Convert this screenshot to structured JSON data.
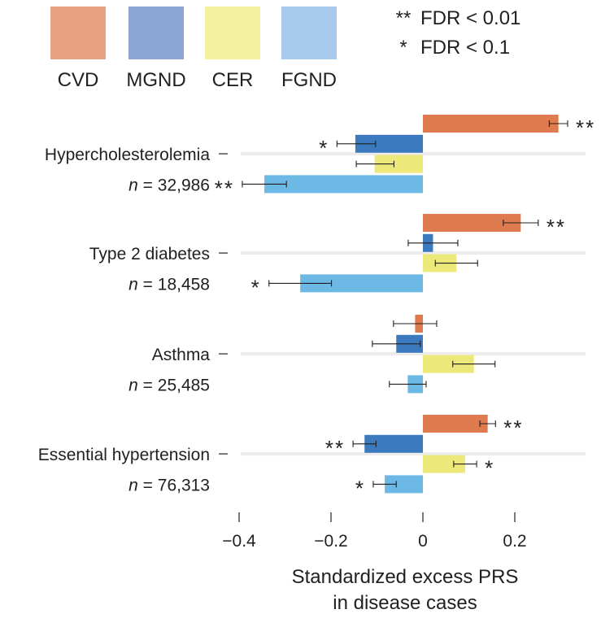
{
  "chart_data": {
    "type": "bar",
    "orientation": "horizontal",
    "xlabel": "Standardized excess PRS in disease cases",
    "xlabel_lines": [
      "Standardized excess PRS",
      "in disease cases"
    ],
    "xlim": [
      -0.42,
      0.35
    ],
    "xticks": [
      {
        "value": -0.4,
        "label": "−0.4"
      },
      {
        "value": -0.2,
        "label": "−0.2"
      },
      {
        "value": 0,
        "label": "0"
      },
      {
        "value": 0.2,
        "label": "0.2"
      }
    ],
    "n_prefix": "n",
    "legend": [
      {
        "key": "CVD",
        "label": "CVD",
        "color": "#e8a281"
      },
      {
        "key": "MGND",
        "label": "MGND",
        "color": "#8ca5d5"
      },
      {
        "key": "CER",
        "label": "CER",
        "color": "#f4f1a1"
      },
      {
        "key": "FGND",
        "label": "FGND",
        "color": "#a8caec"
      }
    ],
    "significance_legend": [
      {
        "symbol": "**",
        "text": "FDR < 0.01"
      },
      {
        "symbol": "*",
        "text": "FDR < 0.1"
      }
    ],
    "bar_colors": {
      "CVD": "#e07b4f",
      "MGND": "#3c7abf",
      "CER": "#ece87a",
      "FGND": "#6db9e6"
    },
    "groups": [
      {
        "name": "Hypercholesterolemia",
        "n": "= 32,986",
        "bars": [
          {
            "series": "CVD",
            "value": 0.295,
            "ci": [
              0.275,
              0.315
            ],
            "sig": "**"
          },
          {
            "series": "MGND",
            "value": -0.147,
            "ci": [
              -0.187,
              -0.103
            ],
            "sig": "*"
          },
          {
            "series": "CER",
            "value": -0.105,
            "ci": [
              -0.145,
              -0.063
            ],
            "sig": ""
          },
          {
            "series": "FGND",
            "value": -0.345,
            "ci": [
              -0.393,
              -0.297
            ],
            "sig": "**"
          }
        ]
      },
      {
        "name": "Type 2 diabetes",
        "n": "= 18,458",
        "bars": [
          {
            "series": "CVD",
            "value": 0.213,
            "ci": [
              0.175,
              0.251
            ],
            "sig": "**"
          },
          {
            "series": "MGND",
            "value": 0.022,
            "ci": [
              -0.032,
              0.076
            ],
            "sig": ""
          },
          {
            "series": "CER",
            "value": 0.073,
            "ci": [
              0.027,
              0.119
            ],
            "sig": ""
          },
          {
            "series": "FGND",
            "value": -0.267,
            "ci": [
              -0.335,
              -0.199
            ],
            "sig": "*"
          }
        ]
      },
      {
        "name": "Asthma",
        "n": "= 25,485",
        "bars": [
          {
            "series": "CVD",
            "value": -0.017,
            "ci": [
              -0.064,
              0.03
            ],
            "sig": ""
          },
          {
            "series": "MGND",
            "value": -0.058,
            "ci": [
              -0.11,
              -0.006
            ],
            "sig": ""
          },
          {
            "series": "CER",
            "value": 0.111,
            "ci": [
              0.065,
              0.157
            ],
            "sig": ""
          },
          {
            "series": "FGND",
            "value": -0.033,
            "ci": [
              -0.073,
              0.007
            ],
            "sig": ""
          }
        ]
      },
      {
        "name": "Essential hypertension",
        "n": "= 76,313",
        "bars": [
          {
            "series": "CVD",
            "value": 0.141,
            "ci": [
              0.124,
              0.158
            ],
            "sig": "**"
          },
          {
            "series": "MGND",
            "value": -0.127,
            "ci": [
              -0.152,
              -0.102
            ],
            "sig": "**"
          },
          {
            "series": "CER",
            "value": 0.092,
            "ci": [
              0.067,
              0.117
            ],
            "sig": "*"
          },
          {
            "series": "FGND",
            "value": -0.083,
            "ci": [
              -0.108,
              -0.058
            ],
            "sig": "*"
          }
        ]
      }
    ]
  }
}
